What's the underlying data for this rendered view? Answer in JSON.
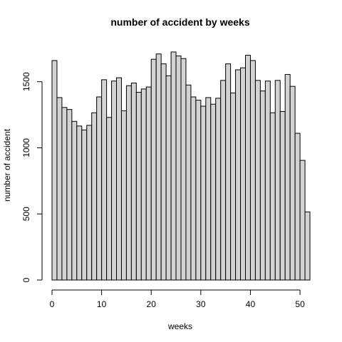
{
  "chart_data": {
    "type": "bar",
    "title": "number of accident by weeks",
    "xlabel": "weeks",
    "ylabel": "number of accident",
    "x_start": 0,
    "bin_width": 1,
    "xlim": [
      0,
      52
    ],
    "ylim": [
      0,
      1730
    ],
    "x_ticks": [
      0,
      10,
      20,
      30,
      40,
      50
    ],
    "y_ticks": [
      0,
      500,
      1000,
      1500
    ],
    "values": [
      1660,
      1380,
      1305,
      1290,
      1200,
      1165,
      1135,
      1170,
      1265,
      1385,
      1515,
      1230,
      1505,
      1530,
      1280,
      1470,
      1490,
      1420,
      1445,
      1460,
      1670,
      1710,
      1635,
      1545,
      1725,
      1695,
      1675,
      1475,
      1385,
      1360,
      1315,
      1380,
      1330,
      1375,
      1510,
      1635,
      1415,
      1590,
      1605,
      1700,
      1660,
      1510,
      1430,
      1505,
      1265,
      1510,
      1275,
      1555,
      1465,
      1110,
      905,
      515
    ],
    "grid": false,
    "colors": {
      "bar_fill": "#d3d3d3",
      "bar_stroke": "#000000"
    }
  }
}
